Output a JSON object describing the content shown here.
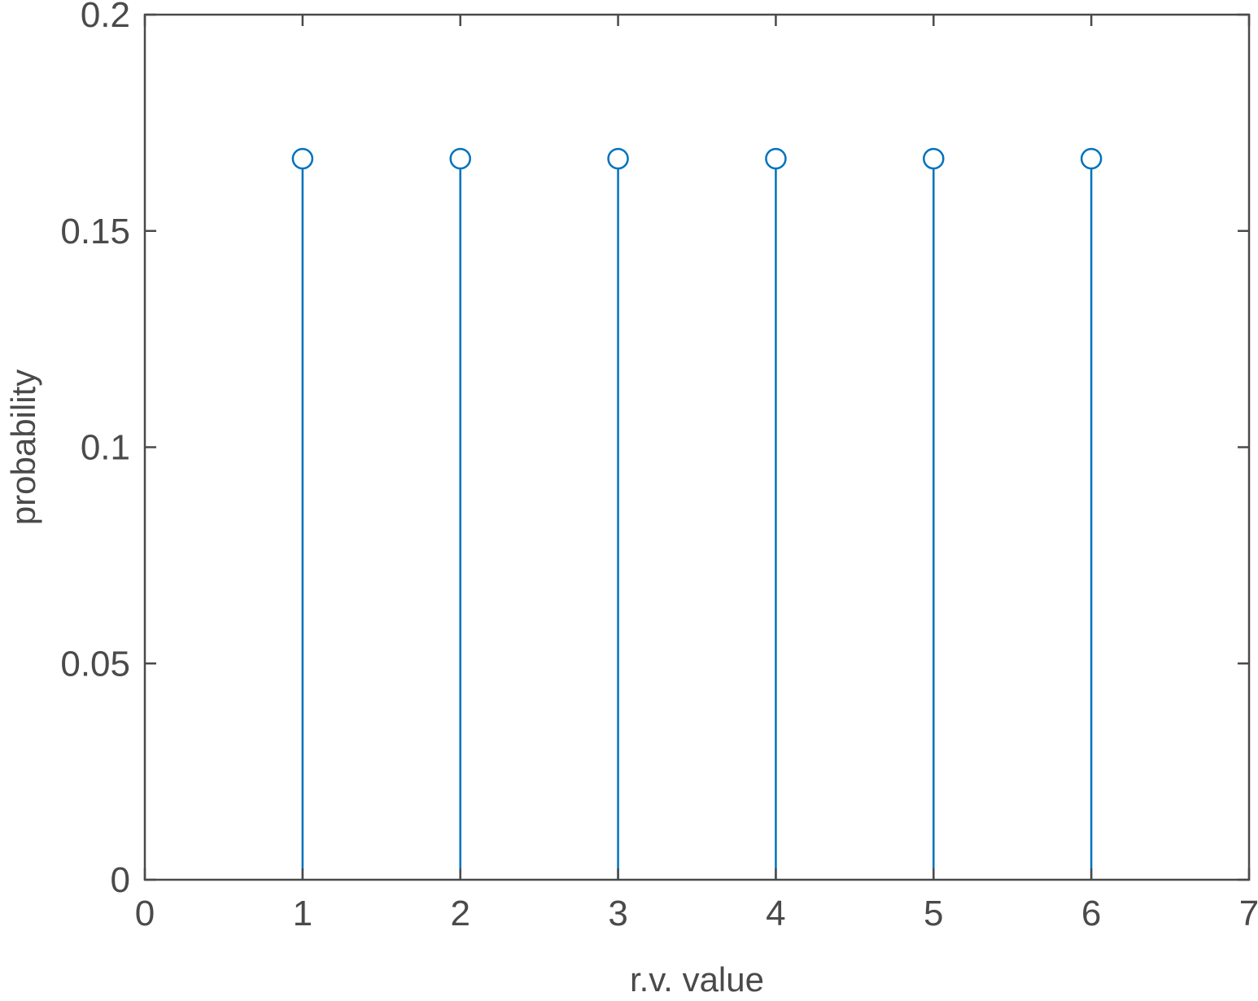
{
  "chart_data": {
    "type": "stem",
    "title": "",
    "xlabel": "r.v. value",
    "ylabel": "probability",
    "xlim": [
      0,
      7
    ],
    "ylim": [
      0,
      0.2
    ],
    "xticks": [
      0,
      1,
      2,
      3,
      4,
      5,
      6,
      7
    ],
    "xtick_labels": [
      "0",
      "1",
      "2",
      "3",
      "4",
      "5",
      "6",
      "7"
    ],
    "yticks": [
      0,
      0.05,
      0.1,
      0.15,
      0.2
    ],
    "ytick_labels": [
      "0",
      "0.05",
      "0.1",
      "0.15",
      "0.2"
    ],
    "grid": false,
    "box": true,
    "x": [
      1,
      2,
      3,
      4,
      5,
      6
    ],
    "values": [
      0.1667,
      0.1667,
      0.1667,
      0.1667,
      0.1667,
      0.1667
    ],
    "marker": "open-circle",
    "colors": {
      "series": "#0072BD",
      "axes": "#4a4a4a"
    }
  }
}
